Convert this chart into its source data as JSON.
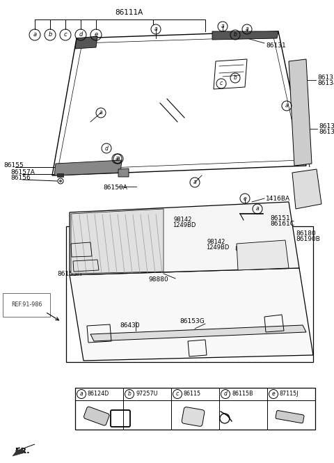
{
  "bg_color": "#ffffff",
  "line_color": "#000000",
  "text_color": "#000000",
  "fig_width": 4.8,
  "fig_height": 6.65,
  "dpi": 100,
  "parts_legend": [
    {
      "letter": "a",
      "code": "86124D"
    },
    {
      "letter": "b",
      "code": "97257U"
    },
    {
      "letter": "c",
      "code": "86115"
    },
    {
      "letter": "d",
      "code": "86115B"
    },
    {
      "letter": "e",
      "code": "87115J"
    }
  ]
}
